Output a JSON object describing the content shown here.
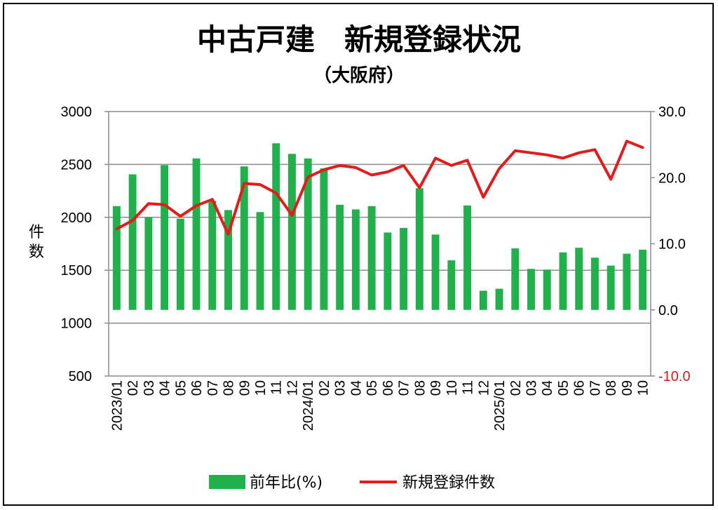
{
  "chart_data": {
    "type": "bar+line",
    "title": "中古戸建　新規登録状況",
    "subtitle": "（大阪府）",
    "ylabel_left": "件数",
    "ylim_left": [
      500,
      3000
    ],
    "yticks_left": [
      "3000",
      "2500",
      "2000",
      "1500",
      "1000",
      "500"
    ],
    "ylim_right": [
      -10,
      30
    ],
    "yticks_right": [
      "30.0",
      "20.0",
      "10.0",
      "0.0",
      "-10.0"
    ],
    "categories": [
      "2023/01",
      "02",
      "03",
      "04",
      "05",
      "06",
      "07",
      "08",
      "09",
      "10",
      "11",
      "12",
      "2024/01",
      "02",
      "03",
      "04",
      "05",
      "06",
      "07",
      "08",
      "09",
      "10",
      "11",
      "12",
      "2025/01",
      "02",
      "03",
      "04",
      "05",
      "06",
      "07",
      "08",
      "09",
      "10"
    ],
    "series": [
      {
        "name": "前年比(%)",
        "type": "bar",
        "axis": "right",
        "color": "#21b04b",
        "values": [
          15.7,
          20.5,
          14.0,
          21.9,
          13.8,
          22.9,
          16.5,
          15.1,
          21.7,
          14.8,
          25.2,
          23.6,
          22.9,
          21.4,
          15.9,
          15.2,
          15.7,
          11.7,
          12.4,
          18.4,
          11.4,
          7.5,
          15.8,
          2.9,
          3.2,
          9.3,
          6.2,
          6.1,
          8.7,
          9.4,
          7.9,
          6.7,
          8.5,
          9.1
        ]
      },
      {
        "name": "新規登録件数",
        "type": "line",
        "axis": "left",
        "color": "#e31b1b",
        "values": [
          1890,
          1970,
          2130,
          2120,
          2010,
          2110,
          2170,
          1840,
          2320,
          2310,
          2230,
          2020,
          2380,
          2450,
          2490,
          2470,
          2400,
          2430,
          2490,
          2280,
          2560,
          2490,
          2540,
          2190,
          2460,
          2630,
          2610,
          2590,
          2560,
          2610,
          2640,
          2360,
          2720,
          2660
        ]
      }
    ],
    "legend_position": "bottom",
    "grid": true
  }
}
